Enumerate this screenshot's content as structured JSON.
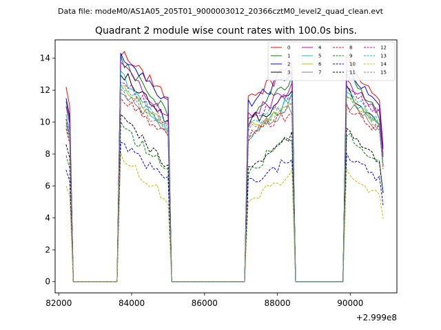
{
  "header": {
    "file_label": "Data file: modeM0/AS1A05_205T01_9000003012_20366cztM0_level2_quad_clean.evt"
  },
  "chart_data": {
    "type": "line",
    "title": "Quadrant 2 module wise count rates with 100.0s bins.",
    "xlabel": "",
    "ylabel": "",
    "x_offset_label": "+2.999e8",
    "xlim": [
      81900,
      91280
    ],
    "ylim": [
      -0.7,
      15.15
    ],
    "xticks": [
      82000,
      84000,
      86000,
      88000,
      90000
    ],
    "xtick_labels": [
      "82000",
      "84000",
      "86000",
      "88000",
      "90000"
    ],
    "yticks": [
      0,
      2,
      4,
      6,
      8,
      10,
      12,
      14
    ],
    "ytick_labels": [
      "0",
      "2",
      "4",
      "6",
      "8",
      "10",
      "12",
      "14"
    ],
    "grid": false,
    "legend_position": "top-right",
    "segments": [
      {
        "start": 82200,
        "end": 82400
      },
      {
        "start": 83600,
        "end": 85100
      },
      {
        "start": 87100,
        "end": 88500
      },
      {
        "start": 89800,
        "end": 90900
      }
    ],
    "series": [
      {
        "name": "0",
        "color": "#ff0000",
        "dash": "solid",
        "levels": [
          12.2,
          14.4,
          11.5,
          13.9,
          11.3
        ]
      },
      {
        "name": "1",
        "color": "#008000",
        "dash": "solid",
        "levels": [
          11.3,
          14.0,
          10.5,
          13.1,
          10.4
        ]
      },
      {
        "name": "2",
        "color": "#0000ff",
        "dash": "solid",
        "levels": [
          11.5,
          14.3,
          11.3,
          13.3,
          11.1
        ]
      },
      {
        "name": "3",
        "color": "#000000",
        "dash": "solid",
        "levels": [
          11.0,
          13.2,
          10.1,
          12.0,
          9.7
        ]
      },
      {
        "name": "4",
        "color": "#bf00bf",
        "dash": "solid",
        "levels": [
          11.0,
          13.5,
          10.4,
          12.5,
          10.6
        ]
      },
      {
        "name": "5",
        "color": "#00bfbf",
        "dash": "solid",
        "levels": [
          10.5,
          13.0,
          9.3,
          11.8,
          9.6
        ]
      },
      {
        "name": "6",
        "color": "#bfbf00",
        "dash": "solid",
        "levels": [
          10.2,
          12.5,
          9.6,
          11.6,
          9.8
        ]
      },
      {
        "name": "7",
        "color": "#808080",
        "dash": "solid",
        "levels": [
          10.0,
          12.0,
          9.3,
          11.2,
          9.6
        ]
      },
      {
        "name": "8",
        "color": "#ff0000",
        "dash": "dashed",
        "levels": [
          9.6,
          11.6,
          9.2,
          11.0,
          9.4
        ]
      },
      {
        "name": "9",
        "color": "#008000",
        "dash": "dashed",
        "levels": [
          7.9,
          9.7,
          7.1,
          9.3,
          7.5
        ]
      },
      {
        "name": "10",
        "color": "#0000ff",
        "dash": "dashed",
        "levels": [
          7.0,
          8.6,
          6.3,
          8.0,
          6.4
        ]
      },
      {
        "name": "11",
        "color": "#000000",
        "dash": "dashed",
        "levels": [
          8.6,
          10.5,
          7.1,
          9.5,
          7.4
        ]
      },
      {
        "name": "12",
        "color": "#bf00bf",
        "dash": "dashed",
        "levels": [
          10.2,
          12.6,
          10.0,
          12.3,
          10.4
        ]
      },
      {
        "name": "13",
        "color": "#00bfbf",
        "dash": "dashed",
        "levels": [
          10.0,
          12.3,
          9.6,
          12.0,
          9.9
        ]
      },
      {
        "name": "14",
        "color": "#bfbf00",
        "dash": "dashed",
        "levels": [
          6.0,
          7.8,
          5.2,
          6.8,
          5.3
        ]
      },
      {
        "name": "15",
        "color": "#808080",
        "dash": "dashed",
        "levels": [
          9.8,
          12.0,
          9.4,
          11.6,
          9.6
        ]
      }
    ]
  }
}
